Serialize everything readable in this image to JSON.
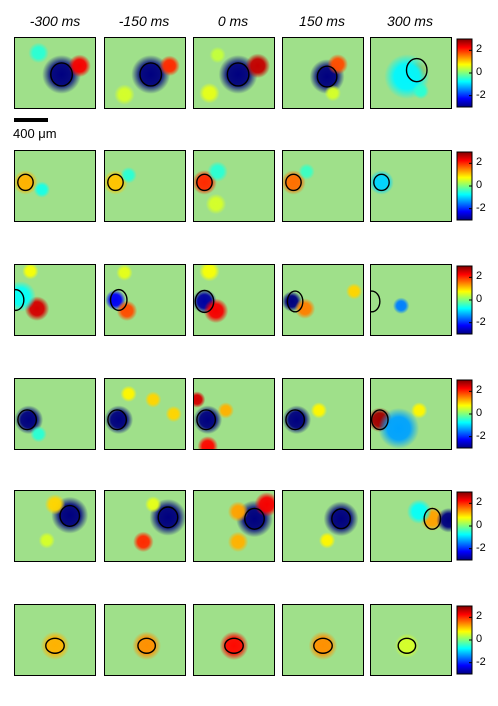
{
  "column_labels": [
    "-300 ms",
    "-150 ms",
    "0 ms",
    "150 ms",
    "300 ms"
  ],
  "scale_bar": {
    "label": "400 μm"
  },
  "colorbar": {
    "ticks": [
      "2",
      "0",
      "-2"
    ],
    "values": [
      2,
      0,
      -2
    ],
    "range": [
      -3,
      3
    ]
  },
  "colors": {
    "background_field": "#9fe08a",
    "scale": [
      "#00007f",
      "#0000ff",
      "#007fff",
      "#00ffff",
      "#7fff7f",
      "#ffff00",
      "#ff7f00",
      "#ff0000",
      "#7f0000"
    ]
  },
  "rows": [
    {
      "cells": [
        {
          "spots": [
            [
              "blob",
              0.58,
              0.52,
              0.19,
              -3
            ],
            [
              "blob",
              0.8,
              0.4,
              0.11,
              2.3
            ],
            [
              "blob",
              0.3,
              0.22,
              0.1,
              -0.5
            ]
          ],
          "ellipse": [
            0.58,
            0.52,
            0.21,
            0.2
          ]
        },
        {
          "spots": [
            [
              "blob",
              0.57,
              0.52,
              0.19,
              -3
            ],
            [
              "blob",
              0.8,
              0.4,
              0.1,
              2.0
            ],
            [
              "blob",
              0.25,
              0.8,
              0.1,
              0.5
            ]
          ],
          "ellipse": [
            0.57,
            0.52,
            0.21,
            0.2
          ]
        },
        {
          "spots": [
            [
              "blob",
              0.55,
              0.52,
              0.19,
              -3
            ],
            [
              "blob",
              0.79,
              0.4,
              0.12,
              2.6
            ],
            [
              "blob",
              0.2,
              0.78,
              0.1,
              0.6
            ],
            [
              "blob",
              0.3,
              0.25,
              0.08,
              0.4
            ]
          ],
          "ellipse": [
            0.55,
            0.52,
            0.21,
            0.2
          ]
        },
        {
          "spots": [
            [
              "blob",
              0.55,
              0.55,
              0.17,
              -3
            ],
            [
              "blob",
              0.68,
              0.38,
              0.1,
              1.8
            ],
            [
              "blob",
              0.62,
              0.78,
              0.08,
              0.5
            ]
          ],
          "ellipse": [
            0.55,
            0.55,
            0.19,
            0.18
          ]
        },
        {
          "spots": [
            [
              "blob",
              0.58,
              0.48,
              0.1,
              1.3
            ],
            [
              "blob",
              0.45,
              0.55,
              0.22,
              -0.8
            ],
            [
              "blob",
              0.62,
              0.75,
              0.08,
              -0.5
            ]
          ],
          "ellipse": [
            0.57,
            0.46,
            0.2,
            0.2
          ]
        }
      ]
    },
    {
      "cells": [
        {
          "spots": [
            [
              "blob",
              0.14,
              0.45,
              0.12,
              1.2
            ],
            [
              "blob",
              0.34,
              0.55,
              0.08,
              -0.6
            ]
          ],
          "ellipse": [
            0.14,
            0.45,
            0.15,
            0.14
          ]
        },
        {
          "spots": [
            [
              "blob",
              0.14,
              0.45,
              0.12,
              1.1
            ],
            [
              "blob",
              0.3,
              0.35,
              0.08,
              -0.5
            ]
          ],
          "ellipse": [
            0.14,
            0.45,
            0.15,
            0.14
          ]
        },
        {
          "spots": [
            [
              "blob",
              0.14,
              0.45,
              0.12,
              2.0
            ],
            [
              "blob",
              0.3,
              0.3,
              0.1,
              -0.5
            ],
            [
              "blob",
              0.28,
              0.75,
              0.1,
              0.5
            ]
          ],
          "ellipse": [
            0.14,
            0.45,
            0.15,
            0.14
          ]
        },
        {
          "spots": [
            [
              "blob",
              0.14,
              0.45,
              0.12,
              1.6
            ],
            [
              "blob",
              0.3,
              0.3,
              0.08,
              -0.4
            ]
          ],
          "ellipse": [
            0.14,
            0.45,
            0.15,
            0.14
          ]
        },
        {
          "spots": [
            [
              "blob",
              0.14,
              0.45,
              0.12,
              -1.0
            ]
          ],
          "ellipse": [
            0.14,
            0.45,
            0.15,
            0.14
          ]
        }
      ]
    },
    {
      "cells": [
        {
          "spots": [
            [
              "blob",
              0.28,
              0.62,
              0.12,
              2.5
            ],
            [
              "blob",
              0.08,
              0.45,
              0.15,
              -0.7
            ],
            [
              "blob",
              0.2,
              0.1,
              0.08,
              0.7
            ]
          ],
          "ellipse": [
            0.02,
            0.5,
            0.16,
            0.18
          ]
        },
        {
          "spots": [
            [
              "blob",
              0.14,
              0.5,
              0.1,
              -2.3
            ],
            [
              "blob",
              0.28,
              0.65,
              0.1,
              1.8
            ],
            [
              "blob",
              0.25,
              0.12,
              0.08,
              0.6
            ]
          ],
          "ellipse": [
            0.18,
            0.5,
            0.16,
            0.18
          ]
        },
        {
          "spots": [
            [
              "blob",
              0.14,
              0.52,
              0.12,
              -2.8
            ],
            [
              "blob",
              0.28,
              0.65,
              0.12,
              2.3
            ],
            [
              "blob",
              0.2,
              0.1,
              0.1,
              0.7
            ]
          ],
          "ellipse": [
            0.14,
            0.52,
            0.18,
            0.19
          ]
        },
        {
          "spots": [
            [
              "blob",
              0.12,
              0.52,
              0.1,
              -3
            ],
            [
              "blob",
              0.28,
              0.62,
              0.1,
              1.5
            ],
            [
              "blob",
              0.88,
              0.38,
              0.08,
              1.0
            ]
          ],
          "ellipse": [
            0.16,
            0.52,
            0.15,
            0.18
          ]
        },
        {
          "spots": [
            [
              "blob",
              0.38,
              0.58,
              0.08,
              -1.5
            ]
          ],
          "ellipse": [
            0.02,
            0.52,
            0.16,
            0.18
          ]
        }
      ]
    },
    {
      "cells": [
        {
          "spots": [
            [
              "blob",
              0.18,
              0.58,
              0.14,
              -3
            ],
            [
              "blob",
              0.3,
              0.78,
              0.08,
              -0.5
            ]
          ],
          "ellipse": [
            0.16,
            0.58,
            0.18,
            0.17
          ]
        },
        {
          "spots": [
            [
              "blob",
              0.18,
              0.58,
              0.14,
              -3
            ],
            [
              "blob",
              0.6,
              0.3,
              0.08,
              1.0
            ],
            [
              "blob",
              0.85,
              0.5,
              0.08,
              1.0
            ],
            [
              "blob",
              0.3,
              0.22,
              0.08,
              0.8
            ]
          ],
          "ellipse": [
            0.16,
            0.58,
            0.18,
            0.17
          ]
        },
        {
          "spots": [
            [
              "blob",
              0.18,
              0.58,
              0.14,
              -3
            ],
            [
              "blob",
              0.4,
              0.45,
              0.08,
              1.2
            ],
            [
              "blob",
              0.18,
              0.95,
              0.1,
              2.2
            ],
            [
              "blob",
              0.05,
              0.3,
              0.08,
              2.5
            ]
          ],
          "ellipse": [
            0.16,
            0.58,
            0.18,
            0.17
          ]
        },
        {
          "spots": [
            [
              "blob",
              0.18,
              0.58,
              0.14,
              -3
            ],
            [
              "blob",
              0.45,
              0.45,
              0.08,
              0.8
            ]
          ],
          "ellipse": [
            0.16,
            0.58,
            0.18,
            0.17
          ]
        },
        {
          "spots": [
            [
              "blob",
              0.12,
              0.58,
              0.12,
              2.8
            ],
            [
              "blob",
              0.35,
              0.7,
              0.2,
              -1.3
            ],
            [
              "blob",
              0.6,
              0.45,
              0.08,
              0.8
            ]
          ],
          "ellipse": [
            0.12,
            0.58,
            0.16,
            0.17
          ]
        }
      ]
    },
    {
      "cells": [
        {
          "spots": [
            [
              "blob",
              0.68,
              0.35,
              0.18,
              -3
            ],
            [
              "blob",
              0.5,
              0.2,
              0.1,
              1.0
            ],
            [
              "blob",
              0.4,
              0.7,
              0.08,
              0.5
            ]
          ],
          "ellipse": [
            0.68,
            0.36,
            0.19,
            0.18
          ]
        },
        {
          "spots": [
            [
              "blob",
              0.78,
              0.38,
              0.18,
              -3
            ],
            [
              "blob",
              0.48,
              0.72,
              0.1,
              2.0
            ],
            [
              "blob",
              0.6,
              0.2,
              0.08,
              0.6
            ]
          ],
          "ellipse": [
            0.78,
            0.38,
            0.19,
            0.18
          ]
        },
        {
          "spots": [
            [
              "blob",
              0.75,
              0.4,
              0.18,
              -3
            ],
            [
              "blob",
              0.9,
              0.2,
              0.12,
              2.3
            ],
            [
              "blob",
              0.55,
              0.3,
              0.1,
              1.3
            ],
            [
              "blob",
              0.55,
              0.72,
              0.1,
              1.2
            ]
          ],
          "ellipse": [
            0.75,
            0.4,
            0.19,
            0.18
          ]
        },
        {
          "spots": [
            [
              "blob",
              0.72,
              0.4,
              0.17,
              -3
            ],
            [
              "blob",
              0.55,
              0.7,
              0.08,
              0.8
            ]
          ],
          "ellipse": [
            0.72,
            0.4,
            0.18,
            0.17
          ]
        },
        {
          "spots": [
            [
              "blob",
              0.76,
              0.4,
              0.12,
              1.3
            ],
            [
              "blob",
              0.96,
              0.42,
              0.12,
              -3
            ],
            [
              "blob",
              0.6,
              0.3,
              0.12,
              -0.7
            ]
          ],
          "ellipse": [
            0.76,
            0.4,
            0.16,
            0.18
          ]
        }
      ]
    },
    {
      "cells": [
        {
          "spots": [
            [
              "blob",
              0.5,
              0.58,
              0.14,
              1.2
            ]
          ],
          "ellipse": [
            0.5,
            0.58,
            0.18,
            0.13
          ]
        },
        {
          "spots": [
            [
              "blob",
              0.52,
              0.58,
              0.14,
              1.4
            ]
          ],
          "ellipse": [
            0.52,
            0.58,
            0.17,
            0.13
          ]
        },
        {
          "spots": [
            [
              "blob",
              0.5,
              0.58,
              0.14,
              2.2
            ]
          ],
          "ellipse": [
            0.5,
            0.58,
            0.18,
            0.13
          ]
        },
        {
          "spots": [
            [
              "blob",
              0.5,
              0.58,
              0.14,
              1.4
            ]
          ],
          "ellipse": [
            0.5,
            0.58,
            0.18,
            0.13
          ]
        },
        {
          "spots": [
            [
              "blob",
              0.45,
              0.58,
              0.12,
              0.5
            ]
          ],
          "ellipse": [
            0.45,
            0.58,
            0.17,
            0.13
          ]
        }
      ]
    }
  ]
}
